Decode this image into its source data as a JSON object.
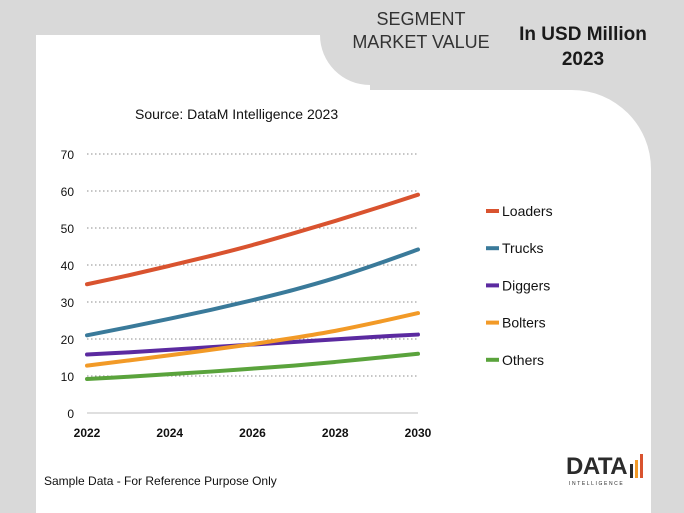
{
  "header": {
    "segment_title": "SEGMENT MARKET VALUE",
    "unit_title": "In USD Million 2023"
  },
  "source": "Source: DataM Intelligence  2023",
  "disclaimer": "Sample Data - For Reference Purpose Only",
  "logo": {
    "word": "DATA",
    "sub": "INTELLIGENCE"
  },
  "chart_data": {
    "type": "line",
    "title": "",
    "xlabel": "",
    "ylabel": "",
    "x": [
      2022,
      2023,
      2024,
      2025,
      2026,
      2027,
      2028,
      2029,
      2030
    ],
    "x_ticks": [
      "2022",
      "2024",
      "2026",
      "2028",
      "2030"
    ],
    "y_ticks": [
      "0",
      "10",
      "20",
      "30",
      "40",
      "50",
      "60",
      "70"
    ],
    "xlim": [
      2022,
      2030
    ],
    "ylim": [
      0,
      70
    ],
    "grid": "horizontal dotted",
    "legend_position": "right",
    "series": [
      {
        "name": "Loaders",
        "color": "#d9532f",
        "values": [
          34.8,
          37.2,
          39.8,
          42.5,
          45.4,
          48.6,
          51.9,
          55.4,
          59.0
        ]
      },
      {
        "name": "Trucks",
        "color": "#3a7a9a",
        "values": [
          21.0,
          23.2,
          25.5,
          27.9,
          30.5,
          33.3,
          36.5,
          40.2,
          44.2
        ]
      },
      {
        "name": "Diggers",
        "color": "#5b2aa0",
        "values": [
          15.8,
          16.4,
          17.1,
          17.8,
          18.5,
          19.2,
          19.9,
          20.6,
          21.2
        ]
      },
      {
        "name": "Bolters",
        "color": "#f29a27",
        "values": [
          12.8,
          14.2,
          15.6,
          17.1,
          18.6,
          20.3,
          22.2,
          24.5,
          27.0
        ]
      },
      {
        "name": "Others",
        "color": "#5aa33c",
        "values": [
          9.2,
          9.8,
          10.5,
          11.2,
          12.0,
          12.8,
          13.8,
          14.9,
          16.0
        ]
      }
    ]
  }
}
